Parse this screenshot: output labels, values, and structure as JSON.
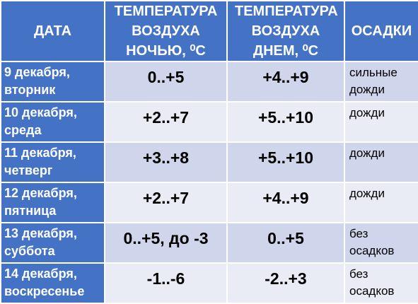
{
  "table": {
    "header": [
      "ДАТА",
      "ТЕМПЕРАТУРА ВОЗДУХА НОЧЬЮ, ⁰С",
      "ТЕМПЕРАТУРА ВОЗДУХА ДНЕМ, ⁰С",
      "ОСАДКИ"
    ],
    "rows": [
      [
        "9 декабря, вторник",
        "0..+5",
        "+4..+9",
        "сильные дожди"
      ],
      [
        "10 декабря, среда",
        "+2..+7",
        "+5..+10",
        "дожди"
      ],
      [
        "11 декабря, четверг",
        "+3..+8",
        "+5..+10",
        "дожди"
      ],
      [
        "12 декабря, пятница",
        "+2..+7",
        "+4..+9",
        "дожди"
      ],
      [
        "13 декабря, суббота",
        "0..+5, до -3",
        "0..+5",
        "без осадков"
      ],
      [
        "14 декабря, воскресенье",
        "-1..-6",
        "-2..+3",
        "без осадков"
      ]
    ]
  }
}
